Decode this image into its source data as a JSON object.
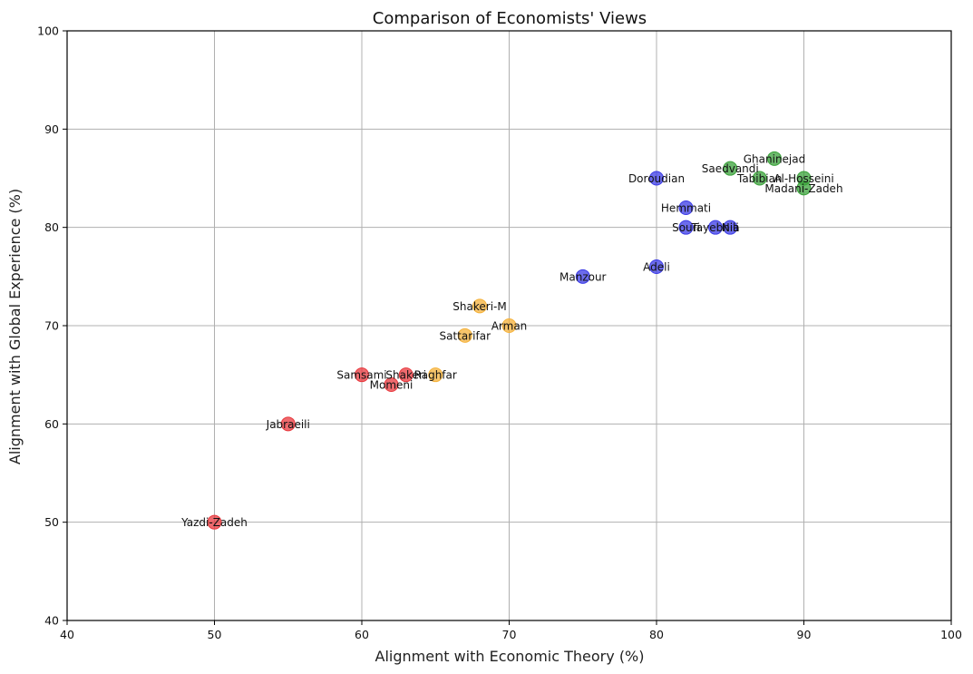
{
  "chart_data": {
    "type": "scatter",
    "title": "Comparison of Economists' Views",
    "xlabel": "Alignment with Economic Theory (%)",
    "ylabel": "Alignment with Global Experience (%)",
    "xlim": [
      40,
      100
    ],
    "ylim": [
      40,
      100
    ],
    "xticks": [
      "40",
      "50",
      "60",
      "70",
      "80",
      "90",
      "100"
    ],
    "yticks": [
      "40",
      "50",
      "60",
      "70",
      "80",
      "90",
      "100"
    ],
    "grid": true,
    "colors": {
      "red": "#e8383d",
      "orange": "#f5b23a",
      "blue": "#3b3be6",
      "green": "#3aa23a"
    },
    "points": [
      {
        "label": "Yazdi-Zadeh",
        "x": 50,
        "y": 50,
        "color": "red"
      },
      {
        "label": "Jabraeili",
        "x": 55,
        "y": 60,
        "color": "red"
      },
      {
        "label": "Samsami",
        "x": 60,
        "y": 65,
        "color": "red"
      },
      {
        "label": "Momeni",
        "x": 62,
        "y": 64,
        "color": "red"
      },
      {
        "label": "Shakeri",
        "x": 63,
        "y": 65,
        "color": "red"
      },
      {
        "label": "Raghfar",
        "x": 65,
        "y": 65,
        "color": "orange"
      },
      {
        "label": "Sattarifar",
        "x": 67,
        "y": 69,
        "color": "orange"
      },
      {
        "label": "Shakeri-M",
        "x": 68,
        "y": 72,
        "color": "orange"
      },
      {
        "label": "Arman",
        "x": 70,
        "y": 70,
        "color": "orange"
      },
      {
        "label": "Manzour",
        "x": 75,
        "y": 75,
        "color": "blue"
      },
      {
        "label": "Adeli",
        "x": 80,
        "y": 76,
        "color": "blue"
      },
      {
        "label": "Doroudian",
        "x": 80,
        "y": 85,
        "color": "blue"
      },
      {
        "label": "Hemmati",
        "x": 82,
        "y": 82,
        "color": "blue"
      },
      {
        "label": "Souri",
        "x": 82,
        "y": 80,
        "color": "blue"
      },
      {
        "label": "Tayebnia",
        "x": 84,
        "y": 80,
        "color": "blue"
      },
      {
        "label": "Nili",
        "x": 85,
        "y": 80,
        "color": "blue"
      },
      {
        "label": "Saedvandi",
        "x": 85,
        "y": 86,
        "color": "green"
      },
      {
        "label": "Tabibian",
        "x": 87,
        "y": 85,
        "color": "green"
      },
      {
        "label": "Ghaninejad",
        "x": 88,
        "y": 87,
        "color": "green"
      },
      {
        "label": "Al-Hosseini",
        "x": 90,
        "y": 85,
        "color": "green"
      },
      {
        "label": "Madani-Zadeh",
        "x": 90,
        "y": 84,
        "color": "green"
      }
    ]
  }
}
